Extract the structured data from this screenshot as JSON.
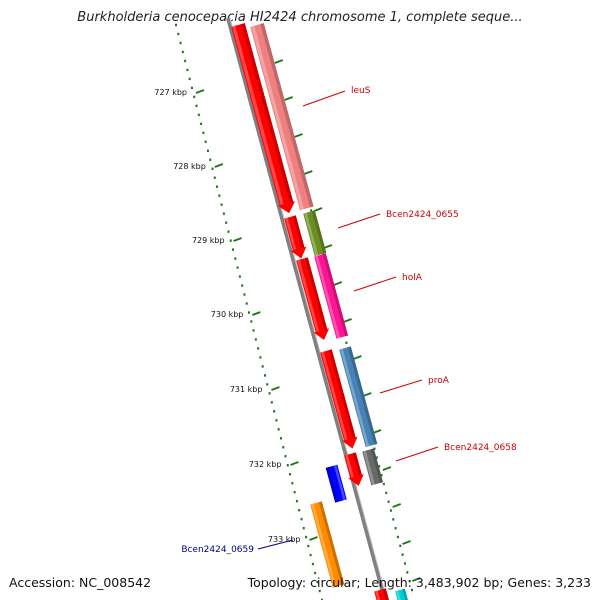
{
  "title": "Burkholderia cenocepacia HI2424 chromosome 1, complete seque...",
  "footer": {
    "accession": "Accession: NC_008542",
    "summary": "Topology: circular; Length: 3,483,902 bp; Genes: 3,233"
  },
  "ruler": {
    "tick_labels": [
      "727 kbp",
      "728 kbp",
      "729 kbp",
      "730 kbp",
      "731 kbp",
      "732 kbp",
      "733 kbp"
    ]
  },
  "genes": [
    {
      "name": "leuS",
      "color": "#f08080",
      "label_color": "#cc0000"
    },
    {
      "name": "Bcen2424_0655",
      "color": "#6b8e23",
      "label_color": "#cc0000"
    },
    {
      "name": "holA",
      "color": "#ff1493",
      "label_color": "#cc0000"
    },
    {
      "name": "proA",
      "color": "#4682b4",
      "label_color": "#cc0000"
    },
    {
      "name": "Bcen2424_0658",
      "color": "#696969",
      "label_color": "#cc0000"
    },
    {
      "name": "Bcen2424_0659",
      "color": "#ff8c00",
      "label_color": "#00008b"
    }
  ],
  "colors": {
    "backbone": "#808080",
    "ruler": "#1a7a1a",
    "orf_forward": "#ff0000",
    "orf_other": "#0000ff"
  }
}
